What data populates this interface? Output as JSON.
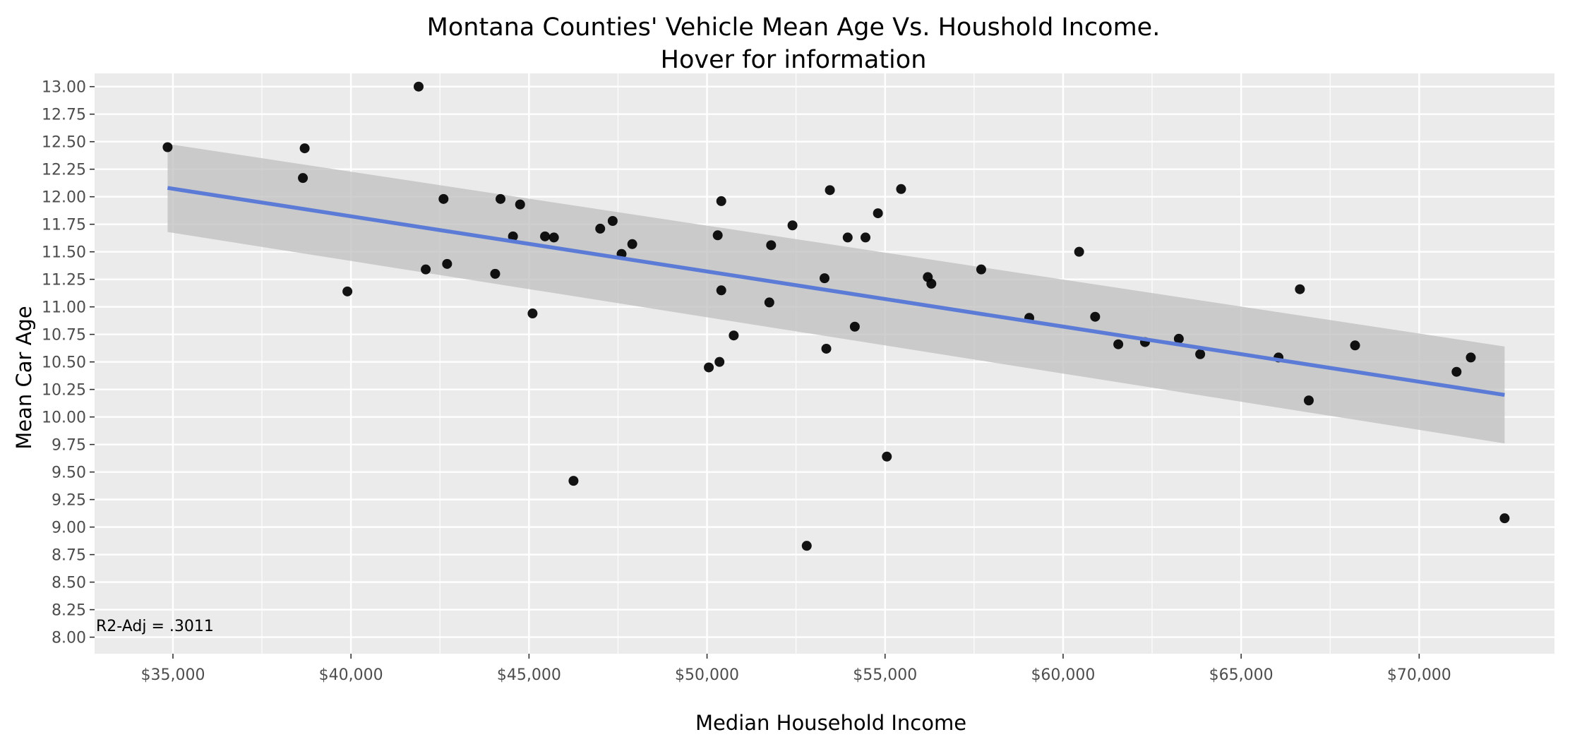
{
  "chart_data": {
    "type": "scatter",
    "title": "Montana Counties' Vehicle Mean Age Vs. Houshold Income.",
    "subtitle": "Hover for information",
    "xlabel": "Median Household Income",
    "ylabel": "Mean Car Age",
    "xlim": [
      32800,
      73800
    ],
    "ylim": [
      7.85,
      13.12
    ],
    "x_ticks": [
      35000,
      40000,
      45000,
      50000,
      55000,
      60000,
      65000,
      70000
    ],
    "x_tick_labels": [
      "$35,000",
      "$40,000",
      "$45,000",
      "$50,000",
      "$55,000",
      "$60,000",
      "$65,000",
      "$70,000"
    ],
    "y_ticks": [
      8.0,
      8.25,
      8.5,
      8.75,
      9.0,
      9.25,
      9.5,
      9.75,
      10.0,
      10.25,
      10.5,
      10.75,
      11.0,
      11.25,
      11.5,
      11.75,
      12.0,
      12.25,
      12.5,
      12.75,
      13.0
    ],
    "y_tick_labels": [
      "8.00",
      "8.25",
      "8.50",
      "8.75",
      "9.00",
      "9.25",
      "9.50",
      "9.75",
      "10.00",
      "10.25",
      "10.50",
      "10.75",
      "11.00",
      "11.25",
      "11.50",
      "11.75",
      "12.00",
      "12.25",
      "12.50",
      "12.75",
      "13.00"
    ],
    "grid": true,
    "points": [
      {
        "x": 34850,
        "y": 12.45
      },
      {
        "x": 38700,
        "y": 12.44
      },
      {
        "x": 38650,
        "y": 12.17
      },
      {
        "x": 39900,
        "y": 11.14
      },
      {
        "x": 41900,
        "y": 13.0
      },
      {
        "x": 42100,
        "y": 11.34
      },
      {
        "x": 42600,
        "y": 11.98
      },
      {
        "x": 42700,
        "y": 11.39
      },
      {
        "x": 44050,
        "y": 11.3
      },
      {
        "x": 44200,
        "y": 11.98
      },
      {
        "x": 44550,
        "y": 11.64
      },
      {
        "x": 44750,
        "y": 11.93
      },
      {
        "x": 45100,
        "y": 10.94
      },
      {
        "x": 45450,
        "y": 11.64
      },
      {
        "x": 45700,
        "y": 11.63
      },
      {
        "x": 46250,
        "y": 9.42
      },
      {
        "x": 47000,
        "y": 11.71
      },
      {
        "x": 47350,
        "y": 11.78
      },
      {
        "x": 47600,
        "y": 11.48
      },
      {
        "x": 47900,
        "y": 11.57
      },
      {
        "x": 50050,
        "y": 10.45
      },
      {
        "x": 50300,
        "y": 11.65
      },
      {
        "x": 50350,
        "y": 10.5
      },
      {
        "x": 50400,
        "y": 11.15
      },
      {
        "x": 50400,
        "y": 11.96
      },
      {
        "x": 50750,
        "y": 10.74
      },
      {
        "x": 51750,
        "y": 11.04
      },
      {
        "x": 51800,
        "y": 11.56
      },
      {
        "x": 52400,
        "y": 11.74
      },
      {
        "x": 52800,
        "y": 8.83
      },
      {
        "x": 53300,
        "y": 11.26
      },
      {
        "x": 53350,
        "y": 10.62
      },
      {
        "x": 53450,
        "y": 12.06
      },
      {
        "x": 53950,
        "y": 11.63
      },
      {
        "x": 54150,
        "y": 10.82
      },
      {
        "x": 54450,
        "y": 11.63
      },
      {
        "x": 54800,
        "y": 11.85
      },
      {
        "x": 55050,
        "y": 9.64
      },
      {
        "x": 55450,
        "y": 12.07
      },
      {
        "x": 56200,
        "y": 11.27
      },
      {
        "x": 56300,
        "y": 11.21
      },
      {
        "x": 57700,
        "y": 11.34
      },
      {
        "x": 59050,
        "y": 10.9
      },
      {
        "x": 60450,
        "y": 11.5
      },
      {
        "x": 60900,
        "y": 10.91
      },
      {
        "x": 61550,
        "y": 10.66
      },
      {
        "x": 62300,
        "y": 10.68
      },
      {
        "x": 63250,
        "y": 10.71
      },
      {
        "x": 63850,
        "y": 10.57
      },
      {
        "x": 66050,
        "y": 10.54
      },
      {
        "x": 66650,
        "y": 11.16
      },
      {
        "x": 66900,
        "y": 10.15
      },
      {
        "x": 68200,
        "y": 10.65
      },
      {
        "x": 71050,
        "y": 10.41
      },
      {
        "x": 71450,
        "y": 10.54
      },
      {
        "x": 72400,
        "y": 9.08
      }
    ],
    "fit_line": {
      "x": [
        34850,
        72400
      ],
      "y": [
        12.08,
        10.2
      ]
    },
    "confidence_band": {
      "x": [
        34850,
        72400
      ],
      "lower": [
        11.68,
        9.76
      ],
      "upper": [
        12.48,
        10.64
      ]
    },
    "annotation": "R2-Adj = .3011",
    "colors": {
      "panel_background": "#ebebeb",
      "grid_line": "#ffffff",
      "point": "#000000",
      "fit_line": "#5b7bd6",
      "band": "#bfbfbf",
      "tick_label": "#4d4d4d"
    }
  }
}
